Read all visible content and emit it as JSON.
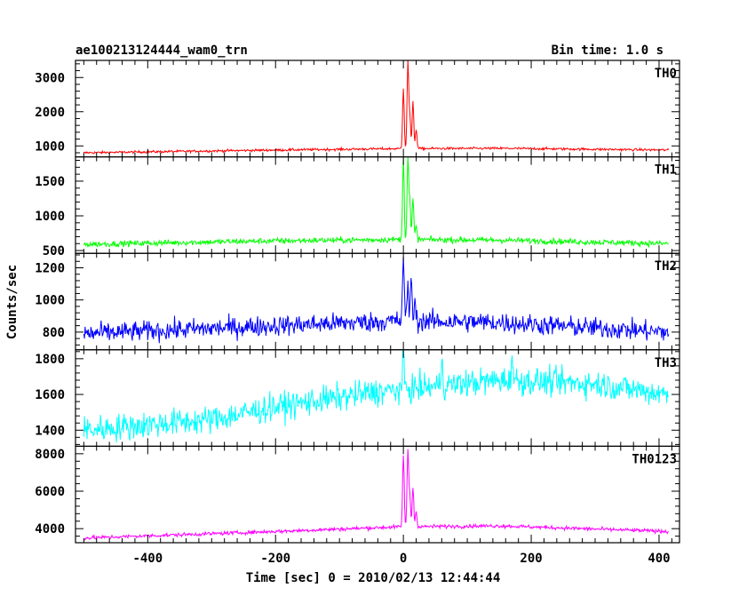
{
  "title": "ae100213124444_wam0_trn",
  "bin_time": "Bin time: 1.0 s",
  "xlabel": "Time [sec] 0 = 2010/02/13 12:44:44",
  "ylabel": "Counts/sec",
  "chart_data": {
    "type": "line",
    "x_range": [
      -513,
      432
    ],
    "x_ticks": [
      -400,
      -200,
      0,
      200,
      400
    ],
    "bin_time_s": 1.0,
    "panels": [
      {
        "name": "TH0",
        "color": "#ff0000",
        "ylim": [
          680,
          3500
        ],
        "ticks": [
          1000,
          2000,
          3000
        ],
        "baseline": [
          [
            -500,
            800
          ],
          [
            -200,
            880
          ],
          [
            -5,
            920
          ],
          [
            150,
            930
          ],
          [
            415,
            880
          ]
        ],
        "noise": 25,
        "peaks": [
          [
            0,
            2700
          ],
          [
            7,
            3500
          ],
          [
            10,
            1900
          ],
          [
            15,
            2300
          ],
          [
            20,
            1500
          ]
        ]
      },
      {
        "name": "TH1",
        "color": "#00ff00",
        "ylim": [
          460,
          1850
        ],
        "ticks": [
          500,
          1000,
          1500
        ],
        "baseline": [
          [
            -500,
            590
          ],
          [
            -200,
            640
          ],
          [
            -5,
            660
          ],
          [
            150,
            650
          ],
          [
            415,
            600
          ]
        ],
        "noise": 30,
        "peaks": [
          [
            0,
            1850
          ],
          [
            7,
            1850
          ],
          [
            10,
            1200
          ],
          [
            15,
            1250
          ],
          [
            20,
            850
          ]
        ]
      },
      {
        "name": "TH2",
        "color": "#0000ff",
        "ylim": [
          690,
          1290
        ],
        "ticks": [
          800,
          1000,
          1200
        ],
        "baseline": [
          [
            -500,
            790
          ],
          [
            -200,
            840
          ],
          [
            -5,
            870
          ],
          [
            150,
            860
          ],
          [
            415,
            800
          ]
        ],
        "noise": 45,
        "peaks": [
          [
            0,
            1290
          ],
          [
            7,
            1090
          ],
          [
            12,
            1150
          ],
          [
            18,
            1000
          ]
        ]
      },
      {
        "name": "TH3",
        "color": "#00ffff",
        "ylim": [
          1310,
          1850
        ],
        "ticks": [
          1400,
          1600,
          1800
        ],
        "baseline": [
          [
            -500,
            1400
          ],
          [
            -300,
            1460
          ],
          [
            -200,
            1530
          ],
          [
            -50,
            1610
          ],
          [
            150,
            1680
          ],
          [
            300,
            1660
          ],
          [
            415,
            1600
          ]
        ],
        "noise": 55,
        "peaks": [
          [
            0,
            1850
          ],
          [
            60,
            1800
          ],
          [
            170,
            1830
          ]
        ]
      },
      {
        "name": "TH0123",
        "color": "#ff00ff",
        "ylim": [
          3250,
          8400
        ],
        "ticks": [
          4000,
          6000,
          8000
        ],
        "baseline": [
          [
            -500,
            3500
          ],
          [
            -200,
            3850
          ],
          [
            -5,
            4100
          ],
          [
            150,
            4150
          ],
          [
            415,
            3850
          ]
        ],
        "noise": 70,
        "peaks": [
          [
            0,
            8000
          ],
          [
            7,
            8200
          ],
          [
            10,
            5800
          ],
          [
            15,
            6200
          ],
          [
            20,
            4900
          ]
        ]
      }
    ]
  }
}
